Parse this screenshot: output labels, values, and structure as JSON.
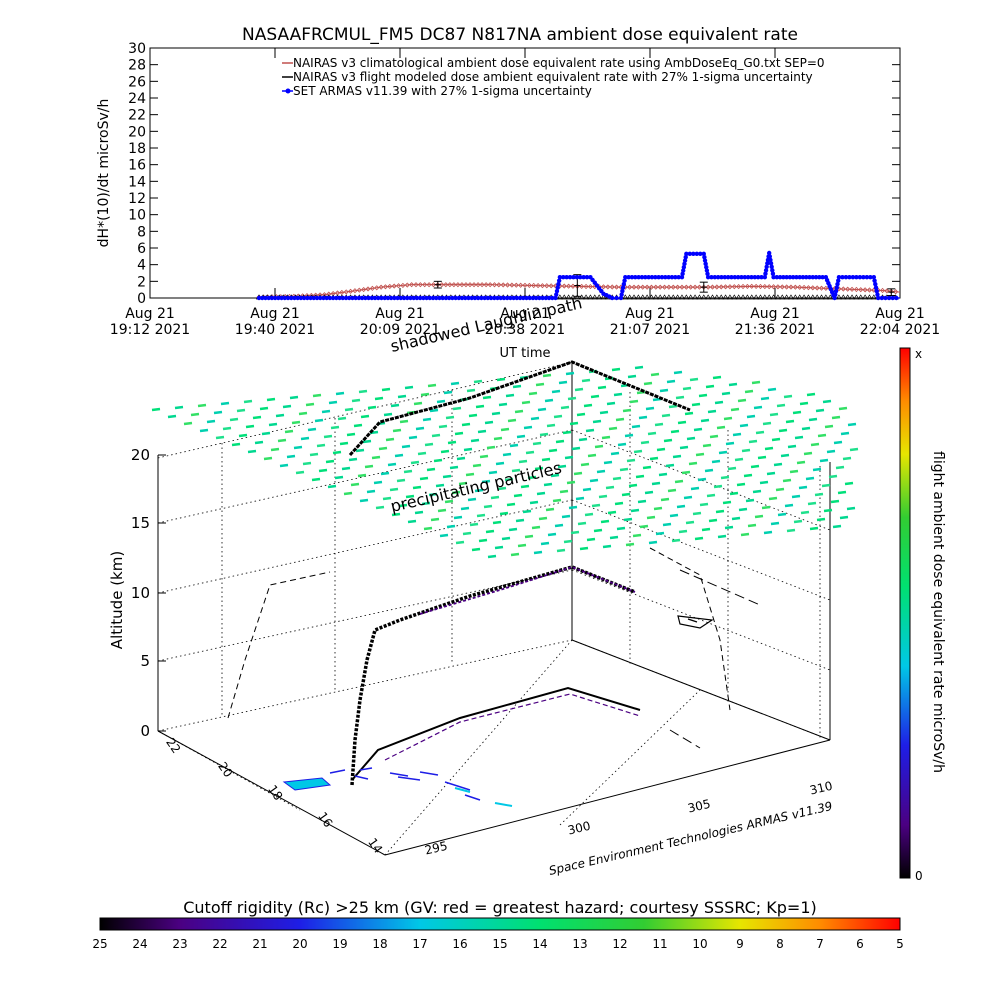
{
  "chart_data": [
    {
      "type": "line",
      "title": "NASAAFRCMUL_FM5 DC87 N817NA ambient dose equivalent rate",
      "xlabel": "UT time",
      "ylabel": "dH*(10)/dt microSv/h",
      "ylim": [
        0,
        30
      ],
      "y_ticks": [
        "0",
        "2",
        "4",
        "6",
        "8",
        "10",
        "12",
        "14",
        "16",
        "18",
        "20",
        "22",
        "24",
        "26",
        "28",
        "30"
      ],
      "x_ticks": [
        {
          "date": "Aug 21",
          "time": "19:12 2021"
        },
        {
          "date": "Aug 21",
          "time": "19:40 2021"
        },
        {
          "date": "Aug 21",
          "time": "20:09 2021"
        },
        {
          "date": "Aug 21",
          "time": "20:38 2021"
        },
        {
          "date": "Aug 21",
          "time": "21:07 2021"
        },
        {
          "date": "Aug 21",
          "time": "21:36 2021"
        },
        {
          "date": "Aug 21",
          "time": "22:04 2021"
        }
      ],
      "x_domain": [
        "19:12",
        "22:04"
      ],
      "legend_position": "top-right",
      "series": [
        {
          "name": "NAIRAS v3 climatological ambient dose equivalent rate using AmbDoseEq_G0.txt SEP=0",
          "color": "#c0504d",
          "marker": "diamond",
          "points": [
            [
              "19:37",
              0.1
            ],
            [
              "19:45",
              0.2
            ],
            [
              "19:52",
              0.4
            ],
            [
              "19:58",
              0.8
            ],
            [
              "20:05",
              1.3
            ],
            [
              "20:12",
              1.6
            ],
            [
              "20:18",
              1.6
            ],
            [
              "20:30",
              1.6
            ],
            [
              "20:40",
              1.5
            ],
            [
              "20:50",
              1.4
            ],
            [
              "21:00",
              1.3
            ],
            [
              "21:10",
              1.3
            ],
            [
              "21:20",
              1.3
            ],
            [
              "21:30",
              1.4
            ],
            [
              "21:40",
              1.3
            ],
            [
              "21:50",
              1.1
            ],
            [
              "22:00",
              0.9
            ],
            [
              "22:04",
              0.7
            ]
          ]
        },
        {
          "name": "NAIRAS v3 flight modeled dose ambient equivalent rate with 27% 1-sigma uncertainty",
          "color": "#000000",
          "marker": "triangle",
          "points": [
            [
              "19:37",
              0
            ],
            [
              "19:50",
              0
            ],
            [
              "20:00",
              0
            ],
            [
              "20:10",
              0
            ],
            [
              "20:20",
              0
            ],
            [
              "20:30",
              0
            ],
            [
              "20:40",
              0
            ],
            [
              "20:50",
              0
            ],
            [
              "21:00",
              0
            ],
            [
              "21:10",
              0
            ],
            [
              "21:20",
              0
            ],
            [
              "21:30",
              0
            ],
            [
              "21:40",
              0
            ],
            [
              "21:50",
              0
            ],
            [
              "22:00",
              0
            ],
            [
              "22:04",
              0
            ]
          ],
          "error_bars": [
            [
              "20:18",
              1.6,
              0.4
            ],
            [
              "20:50",
              1.5,
              1.3
            ],
            [
              "21:19",
              1.3,
              0.6
            ],
            [
              "22:02",
              0.7,
              0.4
            ]
          ]
        },
        {
          "name": "SET ARMAS v11.39 with 27% 1-sigma uncertainty",
          "color": "#0000ff",
          "marker": "circle",
          "points": [
            [
              "19:37",
              0
            ],
            [
              "20:45",
              0
            ],
            [
              "20:46",
              2.5
            ],
            [
              "20:53",
              2.5
            ],
            [
              "20:56",
              0.5
            ],
            [
              "20:58",
              0
            ],
            [
              "21:00",
              0
            ],
            [
              "21:01",
              2.5
            ],
            [
              "21:14",
              2.5
            ],
            [
              "21:15",
              5.3
            ],
            [
              "21:19",
              5.3
            ],
            [
              "21:20",
              2.5
            ],
            [
              "21:33",
              2.5
            ],
            [
              "21:34",
              5.4
            ],
            [
              "21:35",
              2.5
            ],
            [
              "21:47",
              2.5
            ],
            [
              "21:49",
              0
            ],
            [
              "21:50",
              2.5
            ],
            [
              "21:58",
              2.5
            ],
            [
              "21:59",
              0
            ],
            [
              "22:04",
              0
            ]
          ]
        }
      ]
    },
    {
      "type": "scatter",
      "subtype": "3d-flight-path",
      "zlabel": "Altitude (km)",
      "z_ticks": [
        "0",
        "5",
        "10",
        "15",
        "20"
      ],
      "lat_ticks": [
        "14",
        "16",
        "18",
        "20",
        "22"
      ],
      "lon_ticks": [
        "295",
        "300",
        "305",
        "310"
      ],
      "annotations": [
        "precipitating particles",
        "shadowed Laughlin path",
        "Space Environment Technologies ARMAS v11.39"
      ],
      "colorbar": {
        "label": "flight ambient dose equivalent rate microSv/h",
        "top": "x",
        "bottom": "0"
      },
      "flight_path": [
        {
          "lon": 294.8,
          "lat": 18.2,
          "alt": 0.2
        },
        {
          "lon": 295.2,
          "lat": 18.5,
          "alt": 4.0
        },
        {
          "lon": 295.4,
          "lat": 18.7,
          "alt": 7.5
        },
        {
          "lon": 297.0,
          "lat": 19.6,
          "alt": 10.6
        },
        {
          "lon": 299.0,
          "lat": 20.8,
          "alt": 11.2
        },
        {
          "lon": 301.5,
          "lat": 22.0,
          "alt": 11.8
        },
        {
          "lon": 303.0,
          "lat": 21.2,
          "alt": 11.3
        }
      ]
    },
    {
      "type": "heatmap",
      "subtype": "colorbar",
      "title": "Cutoff rigidity (Rc) >25 km (GV: red = greatest hazard; courtesy SSSRC; Kp=1)",
      "ticks": [
        "25",
        "24",
        "23",
        "22",
        "21",
        "20",
        "19",
        "18",
        "17",
        "16",
        "15",
        "14",
        "13",
        "12",
        "11",
        "10",
        "9",
        "8",
        "7",
        "6",
        "5"
      ]
    }
  ]
}
